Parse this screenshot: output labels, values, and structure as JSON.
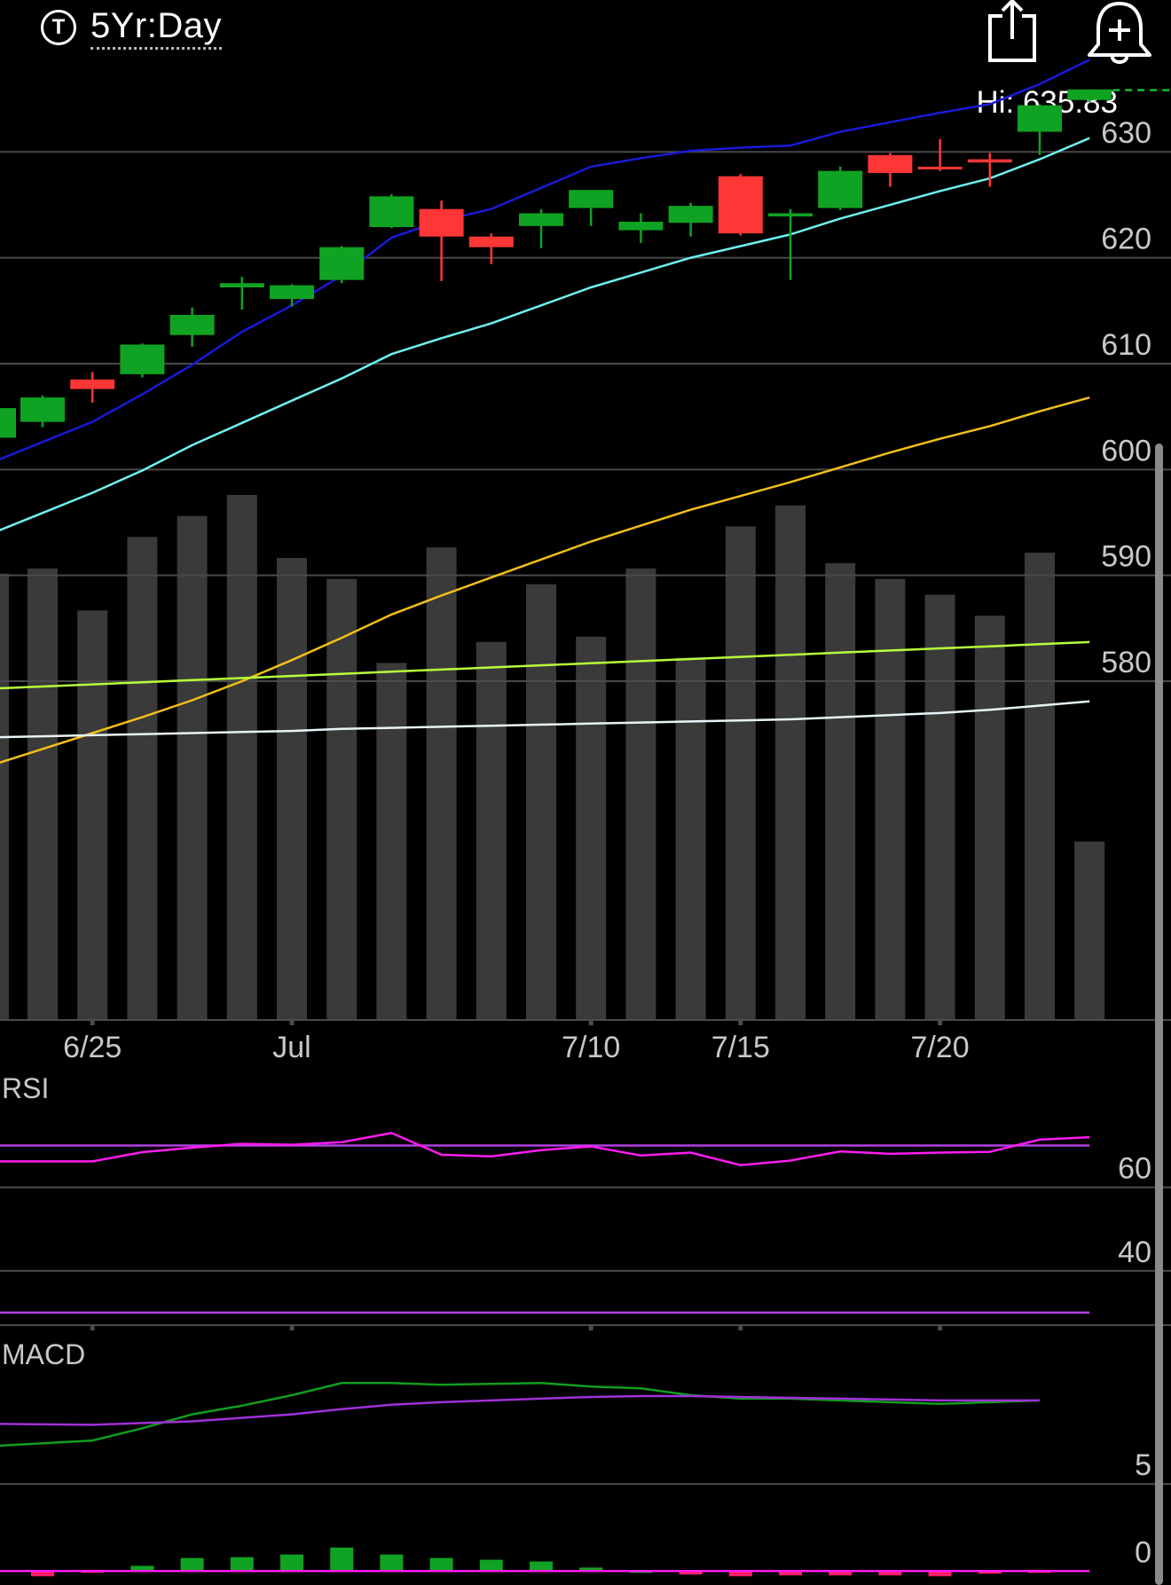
{
  "header": {
    "ticker_icon_letter": "T",
    "period_label": "5Yr:Day",
    "share_icon": "share-icon",
    "alert_icon": "bell-plus-icon",
    "hi_label": "Hi: 635.83"
  },
  "colors": {
    "up": "#10a323",
    "down": "#ff3636",
    "volume": "#3a3a3a",
    "grid": "#4a4a4a",
    "axis_text": "#c8c8c8",
    "ma_blue": "#1a1ad6",
    "ma_cyan": "#6ff0f0",
    "ma_yellow": "#f2c018",
    "ma_green": "#b6ff3a",
    "ma_white": "#e8f4f8",
    "rsi_line": "#ff1cf0",
    "rsi_ref": "#b040e0",
    "macd_line": "#0f9e20",
    "macd_signal": "#a030d8",
    "hist_pos": "#10a323",
    "hist_neg": "#ff1c6a",
    "hist_zero": "#ff1cf0",
    "hi_dash": "#10c030"
  },
  "chart_data": [
    {
      "type": "candlestick",
      "name": "price",
      "ylim": [
        548,
        642
      ],
      "yticks": [
        580,
        590,
        600,
        610,
        620,
        630
      ],
      "hi_value": 635.83,
      "x_labels": [
        {
          "index": 1,
          "label": "6/25"
        },
        {
          "index": 5,
          "label": "Jul"
        },
        {
          "index": 11,
          "label": "7/10"
        },
        {
          "index": 14,
          "label": "7/15"
        },
        {
          "index": 18,
          "label": "7/20"
        }
      ],
      "candles": [
        {
          "o": 604.5,
          "h": 607.0,
          "l": 604.0,
          "c": 606.8
        },
        {
          "o": 608.5,
          "h": 609.2,
          "l": 606.3,
          "c": 607.6
        },
        {
          "o": 609.0,
          "h": 611.9,
          "l": 608.7,
          "c": 611.8
        },
        {
          "o": 612.7,
          "h": 615.3,
          "l": 611.6,
          "c": 614.6
        },
        {
          "o": 617.2,
          "h": 618.2,
          "l": 615.1,
          "c": 617.6
        },
        {
          "o": 616.1,
          "h": 617.5,
          "l": 615.4,
          "c": 617.4
        },
        {
          "o": 617.9,
          "h": 621.1,
          "l": 617.6,
          "c": 621.0
        },
        {
          "o": 622.9,
          "h": 626.0,
          "l": 622.8,
          "c": 625.8
        },
        {
          "o": 624.6,
          "h": 625.4,
          "l": 617.8,
          "c": 622.0
        },
        {
          "o": 622.0,
          "h": 622.3,
          "l": 619.4,
          "c": 621.0
        },
        {
          "o": 623.0,
          "h": 624.6,
          "l": 620.9,
          "c": 624.2
        },
        {
          "o": 624.7,
          "h": 626.3,
          "l": 623.0,
          "c": 626.4
        },
        {
          "o": 622.6,
          "h": 624.2,
          "l": 621.4,
          "c": 623.4
        },
        {
          "o": 623.3,
          "h": 625.2,
          "l": 622.0,
          "c": 624.9
        },
        {
          "o": 627.7,
          "h": 627.9,
          "l": 622.1,
          "c": 622.3
        },
        {
          "o": 623.9,
          "h": 624.6,
          "l": 617.9,
          "c": 624.2
        },
        {
          "o": 624.7,
          "h": 628.6,
          "l": 624.5,
          "c": 628.2
        },
        {
          "o": 629.7,
          "h": 629.9,
          "l": 626.7,
          "c": 628.0
        },
        {
          "o": 628.6,
          "h": 631.2,
          "l": 628.2,
          "c": 628.5
        },
        {
          "o": 629.3,
          "h": 629.9,
          "l": 626.7,
          "c": 629.0
        },
        {
          "o": 631.9,
          "h": 634.5,
          "l": 629.7,
          "c": 634.4
        },
        {
          "o": 634.9,
          "h": 635.9,
          "l": 634.7,
          "c": 635.9
        }
      ],
      "volume": {
        "max": 100,
        "values": [
          86,
          78,
          92,
          96,
          100,
          88,
          84,
          68,
          90,
          72,
          83,
          73,
          86,
          69,
          94,
          98,
          87,
          84,
          81,
          77,
          89,
          34
        ],
        "extra_left": 85
      },
      "moving_averages": [
        {
          "color_key": "ma_blue",
          "values": [
            602.6,
            604.5,
            607.1,
            609.9,
            613.0,
            615.5,
            618.3,
            621.9,
            623.5,
            624.6,
            626.6,
            628.6,
            629.4,
            630.1,
            630.4,
            630.6,
            631.9,
            632.8,
            633.7,
            634.5,
            636.4,
            638.7
          ]
        },
        {
          "color_key": "ma_cyan",
          "values": [
            595.9,
            597.8,
            599.9,
            602.3,
            604.4,
            606.5,
            608.6,
            610.9,
            612.4,
            613.8,
            615.5,
            617.2,
            618.6,
            620.0,
            621.1,
            622.2,
            623.7,
            625.0,
            626.3,
            627.5,
            629.3,
            631.3
          ]
        },
        {
          "color_key": "ma_yellow",
          "values": [
            573.6,
            575.1,
            576.6,
            578.2,
            580.0,
            582.0,
            584.1,
            586.3,
            588.1,
            589.8,
            591.5,
            593.2,
            594.7,
            596.2,
            597.5,
            598.8,
            600.2,
            601.6,
            602.9,
            604.1,
            605.5,
            606.8
          ]
        },
        {
          "color_key": "ma_green",
          "values": [
            579.5,
            579.7,
            579.9,
            580.1,
            580.3,
            580.5,
            580.7,
            580.9,
            581.1,
            581.3,
            581.5,
            581.7,
            581.9,
            582.1,
            582.3,
            582.5,
            582.7,
            582.9,
            583.1,
            583.3,
            583.5,
            583.7
          ]
        },
        {
          "color_key": "ma_white",
          "values": [
            574.8,
            574.9,
            575.0,
            575.1,
            575.2,
            575.3,
            575.5,
            575.6,
            575.7,
            575.8,
            575.9,
            576.0,
            576.1,
            576.2,
            576.3,
            576.4,
            576.6,
            576.8,
            577.0,
            577.3,
            577.7,
            578.1
          ]
        }
      ]
    },
    {
      "type": "line",
      "name": "RSI",
      "title": "RSI",
      "ylim": [
        27,
        82
      ],
      "yticks": [
        40,
        60
      ],
      "reference_levels": [
        70,
        30
      ],
      "values": [
        66.2,
        68.4,
        69.5,
        70.4,
        70.2,
        70.8,
        73.0,
        67.8,
        67.4,
        68.9,
        69.8,
        67.6,
        68.3,
        65.3,
        66.4,
        68.6,
        68.0,
        68.3,
        68.5,
        71.4,
        72.0
      ]
    },
    {
      "type": "line",
      "name": "MACD",
      "title": "MACD",
      "ylim": [
        -0.8,
        12.8
      ],
      "yticks": [
        0,
        5
      ],
      "macd": [
        7.5,
        8.2,
        9.0,
        9.5,
        10.1,
        10.8,
        10.8,
        10.7,
        10.75,
        10.8,
        10.6,
        10.5,
        10.1,
        9.9,
        9.9,
        9.8,
        9.7,
        9.6,
        9.7,
        9.8
      ],
      "signal": [
        8.4,
        8.5,
        8.6,
        8.8,
        9.0,
        9.3,
        9.55,
        9.7,
        9.8,
        9.9,
        10.0,
        10.05,
        10.05,
        10.0,
        9.95,
        9.9,
        9.85,
        9.8,
        9.8,
        9.8
      ],
      "histogram": [
        -0.3,
        -0.05,
        0.3,
        0.75,
        0.8,
        0.95,
        1.35,
        0.95,
        0.75,
        0.65,
        0.55,
        0.2,
        0.0,
        -0.2,
        -0.3,
        -0.25,
        -0.25,
        -0.25,
        -0.3,
        -0.15,
        -0.05
      ]
    }
  ]
}
